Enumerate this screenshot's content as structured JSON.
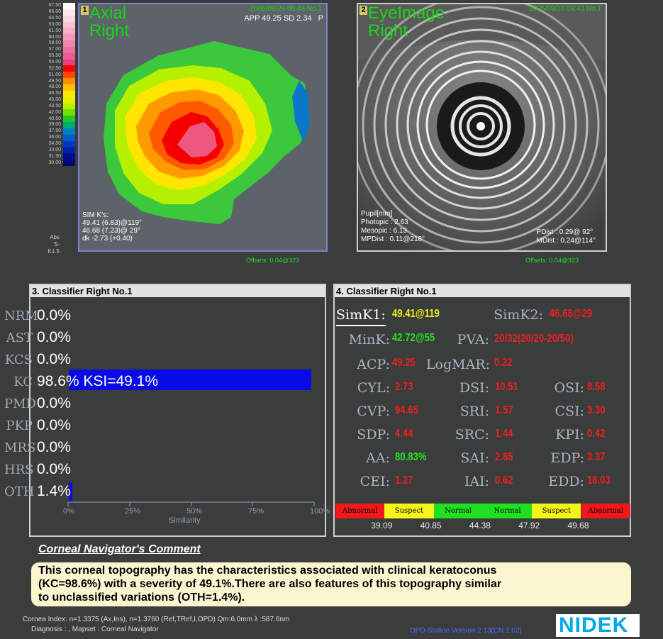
{
  "scale": {
    "values": [
      "67.50",
      "66.00",
      "64.50",
      "63.00",
      "61.50",
      "60.00",
      "58.50",
      "57.00",
      "55.50",
      "54.00",
      "52.50",
      "51.00",
      "49.50",
      "48.00",
      "46.50",
      "45.00",
      "43.50",
      "42.00",
      "40.50",
      "39.00",
      "37.50",
      "36.00",
      "34.50",
      "33.00",
      "31.50",
      "30.00"
    ],
    "colors": [
      "#ffffff",
      "#fde8ee",
      "#fbd6e1",
      "#f8c2d3",
      "#f5aec5",
      "#f29bb8",
      "#ef87aa",
      "#ec739d",
      "#e85f8f",
      "#e44080",
      "#f50000",
      "#ff4a00",
      "#ff8c00",
      "#ffc000",
      "#ffe600",
      "#e2f000",
      "#b4f000",
      "#6ee000",
      "#20c820",
      "#00a878",
      "#0080c0",
      "#005ec8",
      "#0038c0",
      "#0020a8",
      "#00108c",
      "#000a70"
    ],
    "abs": "Abs",
    "step": "S-K1.5"
  },
  "panel1": {
    "num": "1",
    "title": "Axial",
    "eye": "Right",
    "date": "2005/09/26 09:43 No.1",
    "app": "APP 49.25 SD 2.34",
    "app_icon": "P",
    "simk_title": "SIM K's:",
    "simk1": "49.41 (6.83)@119°",
    "simk2": "46.68 (7.23)@ 29°",
    "dk": "dk -2.73 (+0.40)",
    "offsets": "Offsets: 0.04@323"
  },
  "panel2": {
    "num": "2",
    "title": "EyeImage",
    "eye": "Right",
    "date": "2005/09/26 09:43 No.1",
    "pupil_title": "Pupil[mm]",
    "photopic": "Photopic : 2.63",
    "mesopic": "Mesopic : 6.13",
    "mpdist": "MPDist : 0.11@218°",
    "pdist": "PDist : 0.29@ 92°",
    "mdist": "MDist : 0.24@114°",
    "offsets": "Offsets: 0.04@323"
  },
  "classifier3": {
    "title": "3. Classifier  Right  No.1",
    "rows": [
      {
        "code": "NRM",
        "value": "0.0%"
      },
      {
        "code": "AST",
        "value": "0.0%"
      },
      {
        "code": "KCS",
        "value": "0.0%"
      },
      {
        "code": "KC",
        "value": "98.6% KSI=49.1%"
      },
      {
        "code": "PMD",
        "value": "0.0%"
      },
      {
        "code": "PKP",
        "value": "0.0%"
      },
      {
        "code": "MRS",
        "value": "0.0%"
      },
      {
        "code": "HRS",
        "value": "0.0%"
      },
      {
        "code": "OTH",
        "value": "1.4%"
      }
    ],
    "ticks": [
      "0%",
      "25%",
      "50%",
      "75%",
      "100%"
    ],
    "axis_label": "Similarity"
  },
  "classifier4": {
    "title": "4. Classifier  Right  No.1",
    "simk1_label": "SimK1:",
    "simk1_value": "49.41@119",
    "simk2_label": "SimK2:",
    "simk2_value": "46.68@29",
    "mink_label": "MinK:",
    "mink_value": "42.72@55",
    "pva_label": "PVA:",
    "pva_value": "20/32(20/20-20/50)",
    "acp_label": "ACP:",
    "acp_value": "49.25",
    "logmar_label": "LogMAR:",
    "logmar_value": "0.22",
    "indices": [
      {
        "label": "CYL:",
        "value": "2.73",
        "color": "red"
      },
      {
        "label": "DSI:",
        "value": "10.51",
        "color": "red"
      },
      {
        "label": "OSI:",
        "value": "8.58",
        "color": "red"
      },
      {
        "label": "CVP:",
        "value": "94.65",
        "color": "red"
      },
      {
        "label": "SRI:",
        "value": "1.57",
        "color": "red"
      },
      {
        "label": "CSI:",
        "value": "3.30",
        "color": "red"
      },
      {
        "label": "SDP:",
        "value": "4.44",
        "color": "red"
      },
      {
        "label": "SRC:",
        "value": "1.44",
        "color": "red"
      },
      {
        "label": "KPI:",
        "value": "0.42",
        "color": "red"
      },
      {
        "label": "AA:",
        "value": "80.83%",
        "color": "green"
      },
      {
        "label": "SAI:",
        "value": "2.85",
        "color": "red"
      },
      {
        "label": "EDP:",
        "value": "3.37",
        "color": "red"
      },
      {
        "label": "CEI:",
        "value": "1.27",
        "color": "red"
      },
      {
        "label": "IAI:",
        "value": "0.62",
        "color": "red"
      },
      {
        "label": "EDD:",
        "value": "18.03",
        "color": "red"
      }
    ],
    "severity": [
      {
        "label": "Abnormal",
        "color": "#f01818"
      },
      {
        "label": "Suspect",
        "color": "#f5f51a"
      },
      {
        "label": "Normal",
        "color": "#21e021"
      },
      {
        "label": "Normal",
        "color": "#21e021"
      },
      {
        "label": "Suspect",
        "color": "#f5f51a"
      },
      {
        "label": "Abnormal",
        "color": "#f01818"
      }
    ],
    "severity_values": [
      "39.09",
      "40.85",
      "44.38",
      "47.92",
      "49.68"
    ]
  },
  "comment": {
    "title": "Corneal Navigator's Comment",
    "line1": "This corneal topography has the characteristics associated with clinical keratoconus",
    "line2": "(KC=98.6%) with a severity of 49.1%.There are also features of this topography similar",
    "line3": "to unclassified variations (OTH=1.4%)."
  },
  "footer": {
    "line1": "Cornea Index: n=1.3375 (Ax,Ins), n=1.3760 (Ref,TRef,I,OPD)  Qm:6.0mm  λ :587.6nm",
    "line2": "Diagnosis : , Mapset : Corneal Navigator",
    "version": "OPD-Station Version 2.13(CN 1.02)",
    "logo": "NIDEK"
  }
}
